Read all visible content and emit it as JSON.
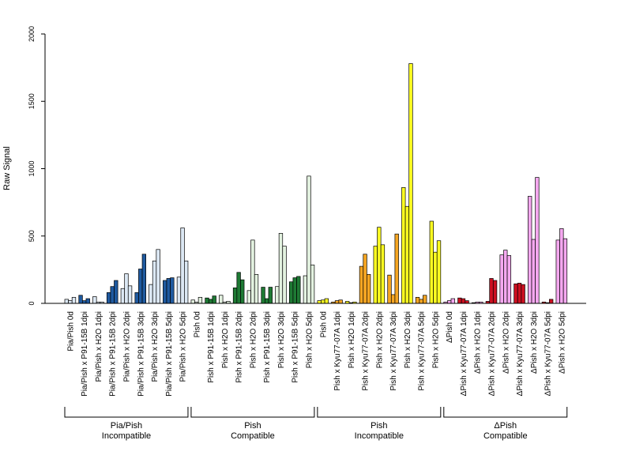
{
  "chart_data": {
    "type": "bar",
    "title": "",
    "xlabel": "",
    "ylabel": "Raw Signal",
    "ylim": [
      0,
      2000
    ],
    "yticks": [
      0,
      500,
      1000,
      1500,
      2000
    ],
    "grid": false,
    "legend": "none",
    "categories": [
      "Pia/Pish 0d",
      "Pia/Pish x P91-15B 1dpi",
      "Pia/Pish x H2O 1dpi",
      "Pia/Pish x P91-15B 2dpi",
      "Pia/Pish x H2O 2dpi",
      "Pia/Pish x P91-15B 3dpi",
      "Pia/Pish x H2O 3dpi",
      "Pia/Pish x P91-15B 5dpi",
      "Pia/Pish x H2O 5dpi",
      "Pish 0d",
      "Pish x P91-15B 1dpi",
      "Pish x H2O 1dpi",
      "Pish x P91-15B 2dpi",
      "Pish x H2O 2dpi",
      "Pish x P91-15B 3dpi",
      "Pish x H2O 3dpi",
      "Pish x P91-15B 5dpi",
      "Pish x H2O 5dpi",
      "Pish 0d",
      "Pish x Kyu77-07A 1dpi",
      "Pish x H2O 1dpi",
      "Pish x Kyu77-07A 2dpi",
      "Pish x H2O 2dpi",
      "Pish x Kyu77-07A 3dpi",
      "Pish x H2O 3dpi",
      "Pish x Kyu77-07A 5dpi",
      "Pish x H2O 5dpi",
      "ΔPish 0d",
      "ΔPish x Kyu77-07A 1dpi",
      "ΔPish x H2O 1dpi",
      "ΔPish x Kyu77-07A 2dpi",
      "ΔPish x H2O 2dpi",
      "ΔPish x Kyu77-07A 3dpi",
      "ΔPish x H2O 3dpi",
      "ΔPish x Kyu77-07A 5dpi",
      "ΔPish x H2O 5dpi"
    ],
    "bar_colors": [
      "#dce8f4",
      "#1f5aa0",
      "#dce8f4",
      "#1f5aa0",
      "#dce8f4",
      "#1f5aa0",
      "#dce8f4",
      "#1f5aa0",
      "#dce8f4",
      "#e3f2e0",
      "#1e7a34",
      "#e3f2e0",
      "#1e7a34",
      "#e3f2e0",
      "#1e7a34",
      "#e3f2e0",
      "#1e7a34",
      "#e3f2e0",
      "#ffff22",
      "#f5a623",
      "#ffff22",
      "#f5a623",
      "#ffff22",
      "#f5a623",
      "#ffff22",
      "#f5a623",
      "#ffff22",
      "#f5a8f0",
      "#cc1020",
      "#f5a8f0",
      "#cc1020",
      "#f5a8f0",
      "#cc1020",
      "#f5a8f0",
      "#cc1020",
      "#f5a8f0"
    ],
    "values": [
      [
        30,
        20,
        45
      ],
      [
        60,
        20,
        35
      ],
      [
        50,
        10,
        10
      ],
      [
        80,
        125,
        170
      ],
      [
        110,
        220,
        130
      ],
      [
        80,
        255,
        365
      ],
      [
        140,
        315,
        400
      ],
      [
        170,
        185,
        190
      ],
      [
        195,
        560,
        315
      ],
      [
        25,
        10,
        45
      ],
      [
        40,
        30,
        55
      ],
      [
        60,
        10,
        15
      ],
      [
        115,
        230,
        175
      ],
      [
        95,
        470,
        215
      ],
      [
        120,
        35,
        120
      ],
      [
        125,
        520,
        425
      ],
      [
        160,
        190,
        200
      ],
      [
        205,
        945,
        285
      ],
      [
        20,
        25,
        35
      ],
      [
        10,
        20,
        25
      ],
      [
        15,
        5,
        10
      ],
      [
        275,
        365,
        215
      ],
      [
        425,
        565,
        435
      ],
      [
        210,
        65,
        515
      ],
      [
        860,
        720,
        1780
      ],
      [
        45,
        30,
        60
      ],
      [
        610,
        380,
        465
      ],
      [
        10,
        20,
        35
      ],
      [
        40,
        35,
        20
      ],
      [
        5,
        10,
        10
      ],
      [
        15,
        185,
        170
      ],
      [
        360,
        395,
        355
      ],
      [
        145,
        150,
        140
      ],
      [
        795,
        475,
        935
      ],
      [
        10,
        5,
        30
      ],
      [
        470,
        555,
        480
      ]
    ],
    "groups": [
      {
        "label_line1": "Pia/Pish",
        "label_line2": "Incompatible",
        "start": 0,
        "end": 8
      },
      {
        "label_line1": "Pish",
        "label_line2": "Compatible",
        "start": 9,
        "end": 17
      },
      {
        "label_line1": "Pish",
        "label_line2": "Incompatible",
        "start": 18,
        "end": 26
      },
      {
        "label_line1": "ΔPish",
        "label_line2": "Compatible",
        "start": 27,
        "end": 35
      }
    ]
  }
}
